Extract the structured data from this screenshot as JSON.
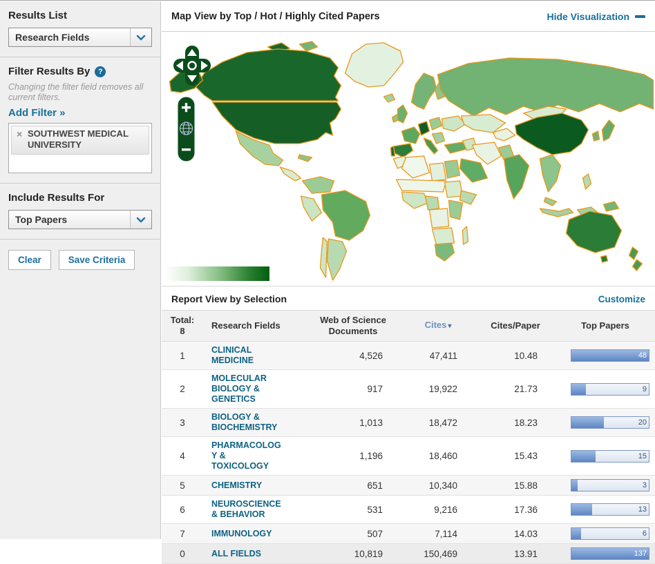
{
  "sidebar": {
    "results_list": {
      "label": "Results List",
      "value": "Research Fields"
    },
    "filter": {
      "label": "Filter Results By",
      "help_icon": "?",
      "note": "Changing the filter field removes all current filters.",
      "add_filter_label": "Add Filter »",
      "tag": {
        "remove_icon": "×",
        "text": "SOUTHWEST MEDICAL UNIVERSITY"
      }
    },
    "include_results": {
      "label": "Include Results For",
      "value": "Top Papers"
    },
    "buttons": {
      "clear": "Clear",
      "save": "Save Criteria"
    }
  },
  "map_panel": {
    "title": "Map View by Top / Hot / Highly Cited Papers",
    "hide_link": "Hide Visualization",
    "legend": {
      "type": "gradient",
      "min_color": "#ffffff",
      "max_color": "#005f0e"
    },
    "border_color": "#e8981a",
    "regions": {
      "greenland": "#e3f1e0",
      "canada": "#1a672c",
      "arctic-island-1": "#1a672c",
      "arctic-island-2": "#74b476",
      "alaska": "#1a672c",
      "usa": "#155f27",
      "mexico": "#a7d2a0",
      "central-america": "#d9ecd3",
      "cuba": "#8cc48a",
      "colombia-venezuela": "#9ccc96",
      "peru": "#cbe5c4",
      "brazil": "#62aa5e",
      "argentina": "#b8dab0",
      "chile": "#cde6c6",
      "iceland": "#a6d0a2",
      "uk": "#6db06d",
      "ireland": "#8ec68c",
      "norway-sweden": "#74b476",
      "finland": "#8ec48e",
      "france": "#5ea75f",
      "spain": "#2c7c3a",
      "portugal": "#1d6a2e",
      "germany": "#135c25",
      "italy": "#4a9a50",
      "poland": "#9ccc96",
      "ukraine": "#cde6c6",
      "balkans": "#a6d0a2",
      "turkey": "#63ab66",
      "russia": "#72b273",
      "kazakhstan": "#d8ecd2",
      "central-asia": "#e8f3e3",
      "mongolia": "#d8ecd2",
      "china": "#0b5b21",
      "iran": "#e8f3e3",
      "iraq-syria": "#cde6c6",
      "saudi-arabia": "#5fac66",
      "india": "#57a45c",
      "pakistan": "#9ccc96",
      "se-asia": "#8cc48a",
      "malaysia": "#9ccc96",
      "indonesia": "#a6d0a2",
      "new-guinea": "#74b476",
      "philippines": "#b8dab0",
      "japan": "#66ac68",
      "korea": "#74b476",
      "morocco": "#e8f3e3",
      "algeria": "#f0f7ec",
      "libya": "#e2f0dd",
      "egypt": "#98ca94",
      "sahel": "#eef6ea",
      "west-africa": "#cde6c6",
      "nigeria": "#b8dab0",
      "sudan": "#d8ecd2",
      "ethiopia": "#b8dab0",
      "east-africa": "#9ccc96",
      "congo": "#e8f3e3",
      "southern-africa": "#d8ecd2",
      "south-africa": "#7cba7c",
      "madagascar": "#cde6c6",
      "australia": "#2a7c37",
      "tasmania": "#2a7c37",
      "new-zealand-north": "#4a9a50",
      "new-zealand-south": "#4a9a50"
    }
  },
  "report": {
    "title": "Report View by Selection",
    "customize_label": "Customize",
    "total": {
      "label": "Total:",
      "value": "8"
    },
    "columns": {
      "fields": "Research Fields",
      "documents": "Web of Science Documents",
      "cites": "Cites",
      "cites_per_paper": "Cites/Paper",
      "top_papers": "Top Papers"
    },
    "sort": {
      "column": "Cites",
      "direction": "desc"
    },
    "bar_max": 48,
    "rows": [
      {
        "rank": "1",
        "field": "CLINICAL MEDICINE",
        "documents": "4,526",
        "cites": "47,411",
        "cites_per_paper": "10.48",
        "top_papers": 48
      },
      {
        "rank": "2",
        "field": "MOLECULAR BIOLOGY & GENETICS",
        "documents": "917",
        "cites": "19,922",
        "cites_per_paper": "21.73",
        "top_papers": 9
      },
      {
        "rank": "3",
        "field": "BIOLOGY & BIOCHEMISTRY",
        "documents": "1,013",
        "cites": "18,472",
        "cites_per_paper": "18.23",
        "top_papers": 20
      },
      {
        "rank": "4",
        "field": "PHARMACOLOGY & TOXICOLOGY",
        "documents": "1,196",
        "cites": "18,460",
        "cites_per_paper": "15.43",
        "top_papers": 15
      },
      {
        "rank": "5",
        "field": "CHEMISTRY",
        "documents": "651",
        "cites": "10,340",
        "cites_per_paper": "15.88",
        "top_papers": 3
      },
      {
        "rank": "6",
        "field": "NEUROSCIENCE & BEHAVIOR",
        "documents": "531",
        "cites": "9,216",
        "cites_per_paper": "17.36",
        "top_papers": 13
      },
      {
        "rank": "7",
        "field": "IMMUNOLOGY",
        "documents": "507",
        "cites": "7,114",
        "cites_per_paper": "14.03",
        "top_papers": 6
      },
      {
        "rank": "0",
        "field": "ALL FIELDS",
        "documents": "10,819",
        "cites": "150,469",
        "cites_per_paper": "13.91",
        "top_papers": 137
      }
    ]
  }
}
